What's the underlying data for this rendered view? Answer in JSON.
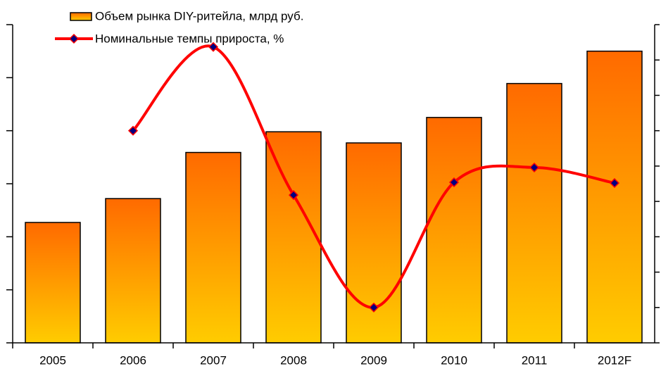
{
  "chart_data": {
    "type": "bar_line",
    "categories": [
      "2005",
      "2006",
      "2007",
      "2008",
      "2009",
      "2010",
      "2011",
      "2012F"
    ],
    "series": [
      {
        "name": "Объем рынка DIY-ритейла, млрд руб.",
        "type": "bar",
        "color": "#ff6a00",
        "color2": "#ffcc00",
        "values": [
          2.27,
          2.72,
          3.59,
          3.98,
          3.77,
          4.25,
          4.89,
          5.5
        ]
      },
      {
        "name": "Номинальные темпы прироста, %",
        "type": "line",
        "axis": "y2",
        "color": "#ff0000",
        "marker_color": "#000080",
        "values": [
          null,
          6.0,
          8.37,
          4.18,
          1.0,
          4.54,
          4.96,
          4.52
        ]
      }
    ],
    "ylim": [
      0,
      6
    ],
    "yticks": [
      0,
      1,
      2,
      3,
      4,
      5,
      6
    ],
    "y2lim": [
      0,
      9
    ],
    "y2ticks": [
      0,
      1,
      2,
      3,
      4,
      5,
      6,
      7,
      8,
      9
    ],
    "legend": "top-left"
  }
}
